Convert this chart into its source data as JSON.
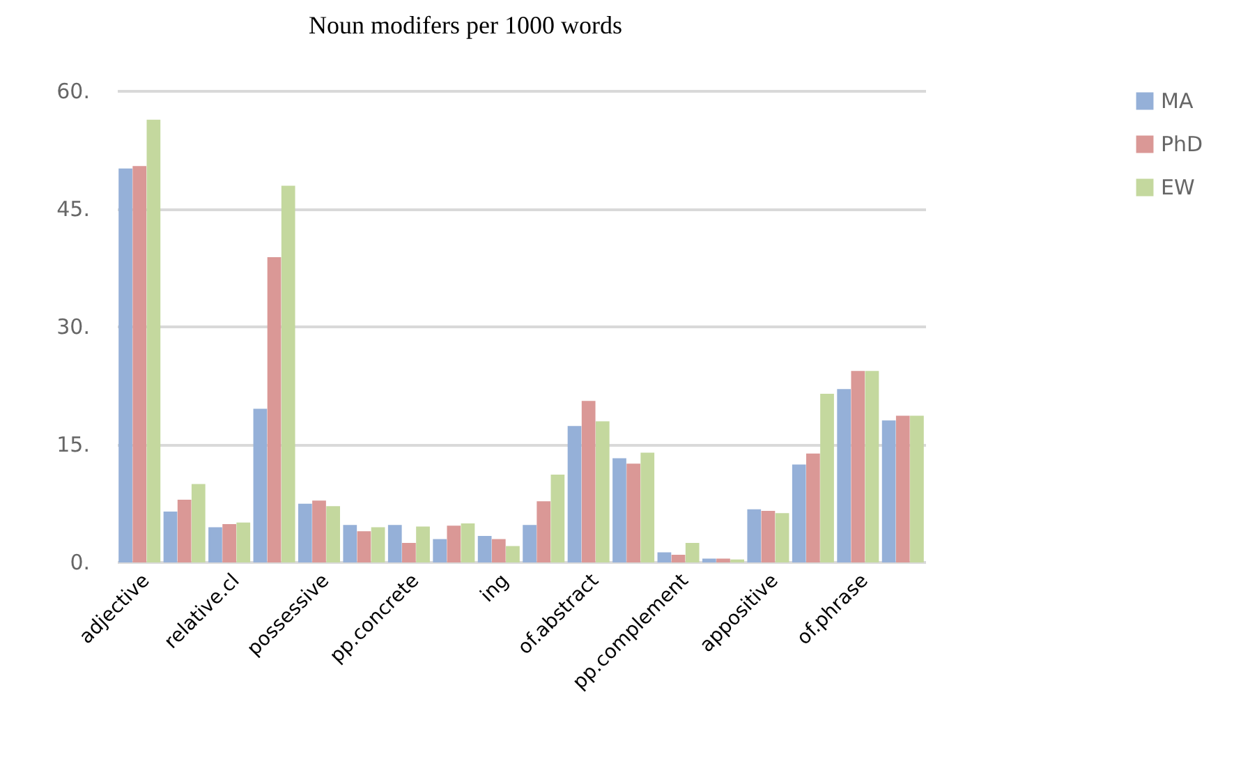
{
  "chart_data": {
    "type": "bar",
    "title": "Noun modifers per 1000 words",
    "categories": [
      "adjective",
      null,
      "relative.cl",
      null,
      "possessive",
      null,
      "pp.concrete",
      null,
      "ing",
      null,
      "of.abstract",
      null,
      "pp.complement",
      null,
      "appositive",
      null,
      "of.phrase",
      null
    ],
    "series": [
      {
        "name": "MA",
        "color": "#95b0d8",
        "values": [
          50,
          6.3,
          4.3,
          19.4,
          7.3,
          4.6,
          4.6,
          2.8,
          3.2,
          4.6,
          17.2,
          13.1,
          1.1,
          0.3,
          6.6,
          12.3,
          21.9,
          17.9
        ]
      },
      {
        "name": "PhD",
        "color": "#da9896",
        "values": [
          50.3,
          7.8,
          4.7,
          38.7,
          7.7,
          3.8,
          2.3,
          4.5,
          2.8,
          7.6,
          20.4,
          12.4,
          0.8,
          0.3,
          6.4,
          13.7,
          24.2,
          18.5
        ]
      },
      {
        "name": "EW",
        "color": "#c4d89e",
        "values": [
          56.2,
          9.8,
          4.9,
          47.8,
          7.0,
          4.3,
          4.4,
          4.8,
          1.9,
          11.0,
          17.8,
          13.8,
          2.3,
          0.2,
          6.1,
          21.3,
          24.2,
          18.5
        ]
      }
    ],
    "ylim": [
      0,
      60
    ],
    "yticks": [
      {
        "value": 0,
        "label": "0."
      },
      {
        "value": 15,
        "label": "15."
      },
      {
        "value": 30,
        "label": "30."
      },
      {
        "value": 45,
        "label": "45."
      },
      {
        "value": 60,
        "label": "60."
      }
    ],
    "grid": "y",
    "legend": "right"
  }
}
